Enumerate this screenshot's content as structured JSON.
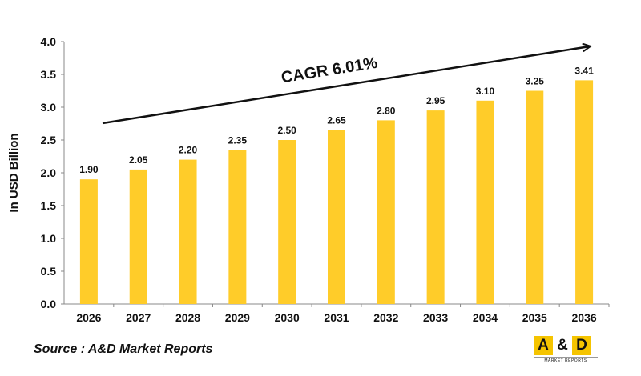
{
  "chart_data": {
    "type": "bar",
    "categories": [
      "2026",
      "2027",
      "2028",
      "2029",
      "2030",
      "2031",
      "2032",
      "2033",
      "2034",
      "2035",
      "2036"
    ],
    "values": [
      1.9,
      2.05,
      2.2,
      2.35,
      2.5,
      2.65,
      2.8,
      2.95,
      3.1,
      3.25,
      3.41
    ],
    "data_labels": [
      "1.90",
      "2.05",
      "2.20",
      "2.35",
      "2.50",
      "2.65",
      "2.80",
      "2.95",
      "3.10",
      "3.25",
      "3.41"
    ],
    "yticks": [
      "0.0",
      "0.5",
      "1.0",
      "1.5",
      "2.0",
      "2.5",
      "3.0",
      "3.5",
      "4.0"
    ],
    "ylim": [
      0,
      4
    ],
    "ylabel": "In USD Billion",
    "xlabel": "",
    "title": "",
    "annotation": "CAGR 6.01%",
    "bar_color": "#ffcc29",
    "grid": false
  },
  "source": "Source : A&D Market Reports",
  "logo": {
    "letter_a": "A",
    "ampersand": "&",
    "letter_d": "D",
    "subtitle": "MARKET REPORTS",
    "brand_color": "#f5c400"
  }
}
